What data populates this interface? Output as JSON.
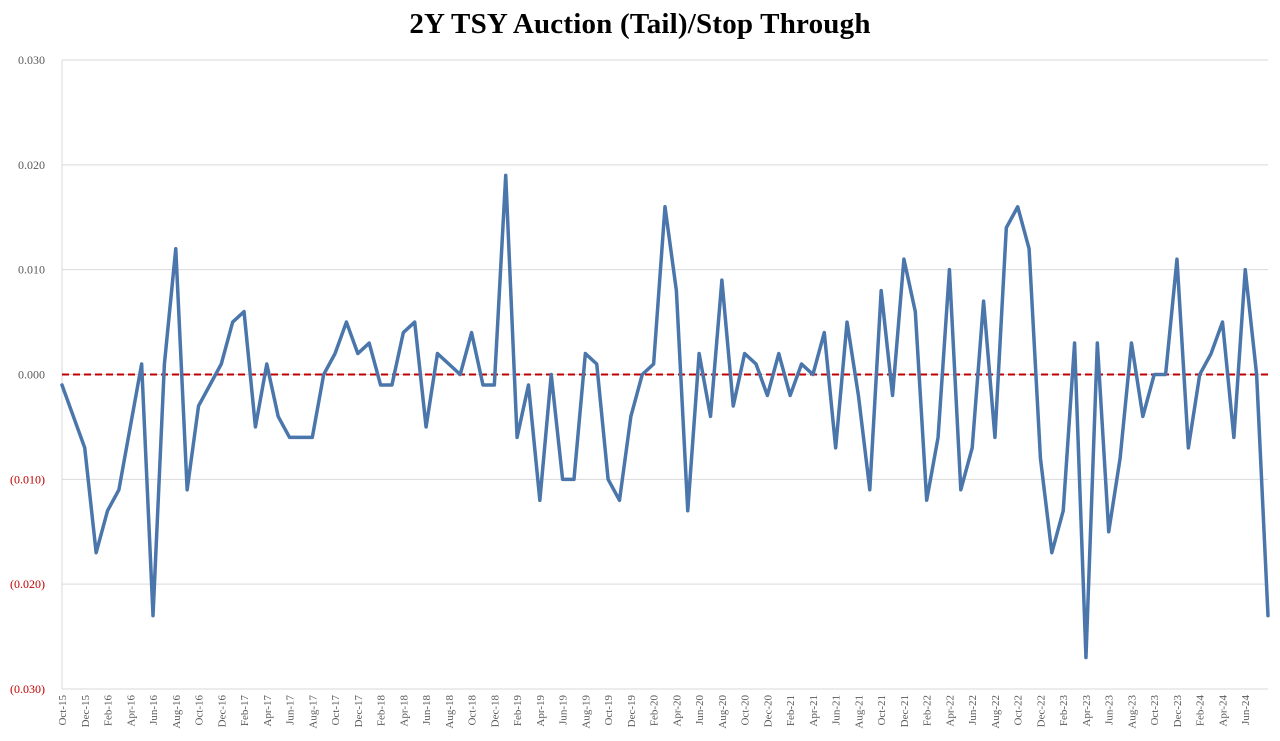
{
  "chart_data": {
    "type": "line",
    "title": "2Y TSY Auction (Tail)/Stop Through",
    "xlabel": "",
    "ylabel": "",
    "ylim": [
      -0.03,
      0.03
    ],
    "y_ticks": [
      {
        "value": 0.03,
        "label": "0.030"
      },
      {
        "value": 0.02,
        "label": "0.020"
      },
      {
        "value": 0.01,
        "label": "0.010"
      },
      {
        "value": 0.0,
        "label": "0.000"
      },
      {
        "value": -0.01,
        "label": "(0.010)"
      },
      {
        "value": -0.02,
        "label": "(0.020)"
      },
      {
        "value": -0.03,
        "label": "(0.030)"
      }
    ],
    "x_tick_labels": [
      "Oct-15",
      "Dec-15",
      "Feb-16",
      "Apr-16",
      "Jun-16",
      "Aug-16",
      "Oct-16",
      "Dec-16",
      "Feb-17",
      "Apr-17",
      "Jun-17",
      "Aug-17",
      "Oct-17",
      "Dec-17",
      "Feb-18",
      "Apr-18",
      "Jun-18",
      "Aug-18",
      "Oct-18",
      "Dec-18",
      "Feb-19",
      "Apr-19",
      "Jun-19",
      "Aug-19",
      "Oct-19",
      "Dec-19",
      "Feb-20",
      "Apr-20",
      "Jun-20",
      "Aug-20",
      "Oct-20",
      "Dec-20",
      "Feb-21",
      "Apr-21",
      "Jun-21",
      "Aug-21",
      "Oct-21",
      "Dec-21",
      "Feb-22",
      "Apr-22",
      "Jun-22",
      "Aug-22",
      "Oct-22",
      "Dec-22",
      "Feb-23",
      "Apr-23",
      "Jun-23",
      "Aug-23",
      "Oct-23",
      "Dec-23",
      "Feb-24",
      "Apr-24",
      "Jun-24"
    ],
    "x": [
      "Oct-15",
      "Nov-15",
      "Dec-15",
      "Jan-16",
      "Feb-16",
      "Mar-16",
      "Apr-16",
      "May-16",
      "Jun-16",
      "Jul-16",
      "Aug-16",
      "Sep-16",
      "Oct-16",
      "Nov-16",
      "Dec-16",
      "Jan-17",
      "Feb-17",
      "Mar-17",
      "Apr-17",
      "May-17",
      "Jun-17",
      "Jul-17",
      "Aug-17",
      "Sep-17",
      "Oct-17",
      "Nov-17",
      "Dec-17",
      "Jan-18",
      "Feb-18",
      "Mar-18",
      "Apr-18",
      "May-18",
      "Jun-18",
      "Jul-18",
      "Aug-18",
      "Sep-18",
      "Oct-18",
      "Nov-18",
      "Dec-18",
      "Jan-19",
      "Feb-19",
      "Mar-19",
      "Apr-19",
      "May-19",
      "Jun-19",
      "Jul-19",
      "Aug-19",
      "Sep-19",
      "Oct-19",
      "Nov-19",
      "Dec-19",
      "Jan-20",
      "Feb-20",
      "Mar-20",
      "Apr-20",
      "May-20",
      "Jun-20",
      "Jul-20",
      "Aug-20",
      "Sep-20",
      "Oct-20",
      "Nov-20",
      "Dec-20",
      "Jan-21",
      "Feb-21",
      "Mar-21",
      "Apr-21",
      "May-21",
      "Jun-21",
      "Jul-21",
      "Aug-21",
      "Sep-21",
      "Oct-21",
      "Nov-21",
      "Dec-21",
      "Jan-22",
      "Feb-22",
      "Mar-22",
      "Apr-22",
      "May-22",
      "Jun-22",
      "Jul-22",
      "Aug-22",
      "Sep-22",
      "Oct-22",
      "Nov-22",
      "Dec-22",
      "Jan-23",
      "Feb-23",
      "Mar-23",
      "Apr-23",
      "May-23",
      "Jun-23",
      "Jul-23",
      "Aug-23",
      "Sep-23",
      "Oct-23",
      "Nov-23",
      "Dec-23",
      "Jan-24",
      "Feb-24",
      "Mar-24",
      "Apr-24",
      "May-24",
      "Jun-24",
      "Jul-24",
      "Aug-24"
    ],
    "series": [
      {
        "name": "",
        "color": "#4a76ab",
        "values": [
          -0.001,
          -0.004,
          -0.007,
          -0.017,
          -0.013,
          -0.011,
          -0.005,
          0.001,
          -0.023,
          0.001,
          0.012,
          -0.011,
          -0.003,
          -0.001,
          0.001,
          0.005,
          0.006,
          -0.005,
          0.001,
          -0.004,
          -0.006,
          -0.006,
          -0.006,
          0.0,
          0.002,
          0.005,
          0.002,
          0.003,
          -0.001,
          -0.001,
          0.004,
          0.005,
          -0.005,
          0.002,
          0.001,
          0.0,
          0.004,
          -0.001,
          -0.001,
          0.019,
          -0.006,
          -0.001,
          -0.012,
          0.0,
          -0.01,
          -0.01,
          0.002,
          0.001,
          -0.01,
          -0.012,
          -0.004,
          0.0,
          0.001,
          0.016,
          0.008,
          -0.013,
          0.002,
          -0.004,
          0.009,
          -0.003,
          0.002,
          0.001,
          -0.002,
          0.002,
          -0.002,
          0.001,
          0.0,
          0.004,
          -0.007,
          0.005,
          -0.002,
          -0.011,
          0.008,
          -0.002,
          0.011,
          0.006,
          -0.012,
          -0.006,
          0.01,
          -0.011,
          -0.007,
          0.007,
          -0.006,
          0.014,
          0.016,
          0.012,
          -0.008,
          -0.017,
          -0.013,
          0.003,
          -0.027,
          0.003,
          -0.015,
          -0.008,
          0.003,
          -0.004,
          0.0,
          0.0,
          0.011,
          -0.007,
          0.0,
          0.002,
          0.005,
          -0.006,
          0.01,
          0.0,
          -0.023
        ]
      }
    ],
    "reference_line": {
      "value": 0.0,
      "color": "#c00000",
      "style": "dashed"
    },
    "grid": true,
    "legend": "none"
  }
}
